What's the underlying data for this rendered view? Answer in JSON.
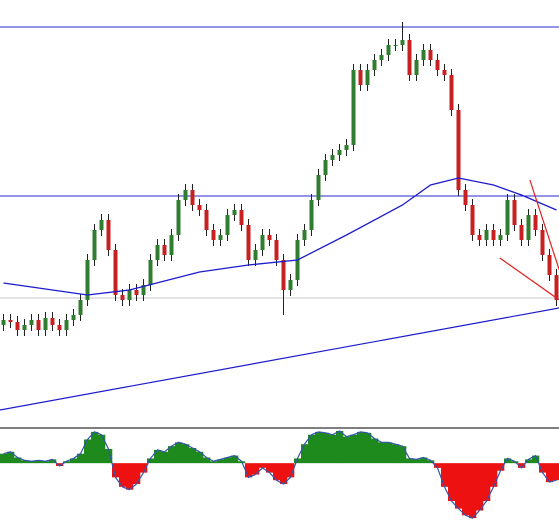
{
  "chart_data": {
    "type": "candlestick",
    "ylim": [
      0,
      425
    ],
    "up_color": "#2f7d2f",
    "down_color": "#c62020",
    "wick_color": "#222222",
    "open": [
      100,
      105,
      103,
      95,
      100,
      105,
      95,
      107,
      100,
      95,
      105,
      110,
      125,
      165,
      195,
      205,
      175,
      130,
      125,
      135,
      130,
      140,
      165,
      180,
      170,
      190,
      225,
      235,
      220,
      215,
      195,
      185,
      190,
      210,
      215,
      200,
      165,
      175,
      190,
      185,
      165,
      135,
      145,
      185,
      195,
      225,
      250,
      265,
      270,
      275,
      280,
      355,
      340,
      355,
      365,
      370,
      380,
      380,
      385,
      350,
      365,
      375,
      365,
      355,
      350,
      315,
      235,
      220,
      190,
      185,
      195,
      185,
      190,
      225,
      200,
      185,
      210,
      195,
      170,
      150
    ],
    "high": [
      111,
      111,
      109,
      106,
      111,
      111,
      113,
      113,
      106,
      111,
      116,
      131,
      171,
      201,
      211,
      211,
      181,
      136,
      141,
      141,
      146,
      171,
      186,
      186,
      196,
      231,
      241,
      241,
      226,
      221,
      201,
      196,
      216,
      221,
      221,
      206,
      181,
      196,
      196,
      191,
      171,
      151,
      191,
      201,
      231,
      256,
      271,
      276,
      281,
      286,
      361,
      361,
      361,
      371,
      376,
      386,
      386,
      403,
      391,
      371,
      381,
      381,
      371,
      361,
      356,
      321,
      241,
      226,
      196,
      201,
      201,
      196,
      231,
      231,
      206,
      216,
      216,
      201,
      176,
      156
    ],
    "low": [
      94,
      97,
      89,
      89,
      94,
      89,
      89,
      94,
      89,
      89,
      99,
      104,
      119,
      159,
      189,
      169,
      124,
      119,
      119,
      124,
      124,
      134,
      159,
      164,
      164,
      184,
      219,
      214,
      209,
      189,
      179,
      179,
      184,
      204,
      194,
      159,
      159,
      169,
      179,
      159,
      110,
      129,
      139,
      179,
      189,
      219,
      244,
      259,
      264,
      269,
      274,
      334,
      334,
      349,
      359,
      364,
      374,
      374,
      344,
      344,
      359,
      359,
      349,
      344,
      309,
      229,
      214,
      184,
      179,
      179,
      179,
      179,
      184,
      194,
      179,
      179,
      189,
      164,
      144,
      119
    ],
    "close": [
      105,
      103,
      95,
      100,
      105,
      95,
      107,
      100,
      95,
      105,
      110,
      125,
      165,
      195,
      205,
      175,
      130,
      125,
      135,
      130,
      140,
      165,
      180,
      170,
      190,
      225,
      235,
      220,
      215,
      195,
      185,
      190,
      210,
      215,
      200,
      165,
      175,
      190,
      185,
      165,
      135,
      145,
      185,
      195,
      225,
      250,
      265,
      270,
      275,
      280,
      355,
      340,
      355,
      365,
      370,
      380,
      380,
      385,
      350,
      365,
      375,
      365,
      355,
      350,
      315,
      235,
      220,
      190,
      185,
      195,
      185,
      190,
      225,
      200,
      185,
      210,
      195,
      170,
      150,
      125
    ],
    "ma": {
      "color": "#1c1ccc",
      "x": [
        0,
        7,
        12,
        18,
        28,
        35,
        42,
        49,
        57,
        61,
        65,
        70,
        74,
        79
      ],
      "values": [
        142,
        135,
        130,
        135,
        153,
        160,
        165,
        190,
        220,
        240,
        247,
        240,
        230,
        215
      ]
    },
    "hlines": [
      {
        "value": 398,
        "color": "#2a2acc"
      },
      {
        "value": 229,
        "color": "#2a2acc"
      },
      {
        "value": 127,
        "color": "#c8c8c8"
      }
    ],
    "trend_lines": [
      {
        "color": "#1c1ccc",
        "x": [
          -0.5,
          79.36
        ],
        "y": [
          15,
          117
        ]
      },
      {
        "color": "#e02020",
        "x": [
          70.9,
          79.4
        ],
        "y": [
          167,
          125
        ]
      },
      {
        "color": "#e02020",
        "x": [
          75.2,
          79.4
        ],
        "y": [
          245,
          155
        ]
      }
    ],
    "oscillator": {
      "ylim": [
        -60,
        35
      ],
      "up_color": "#1e8a1e",
      "down_color": "#ee1111",
      "line_color": "#3355aa",
      "values": [
        10,
        12,
        6,
        3,
        2,
        3,
        2,
        4,
        -3,
        2,
        5,
        10,
        25,
        33,
        30,
        15,
        -15,
        -25,
        -28,
        -22,
        -10,
        5,
        14,
        12,
        18,
        22,
        20,
        16,
        12,
        6,
        2,
        4,
        6,
        8,
        2,
        -15,
        -12,
        -5,
        -10,
        -18,
        -22,
        -15,
        5,
        20,
        30,
        33,
        32,
        30,
        34,
        28,
        30,
        33,
        32,
        26,
        22,
        22,
        20,
        18,
        5,
        4,
        6,
        3,
        -5,
        -25,
        -40,
        -48,
        -55,
        -58,
        -50,
        -40,
        -25,
        -8,
        5,
        2,
        -5,
        4,
        8,
        -10,
        -20,
        -18
      ]
    }
  }
}
